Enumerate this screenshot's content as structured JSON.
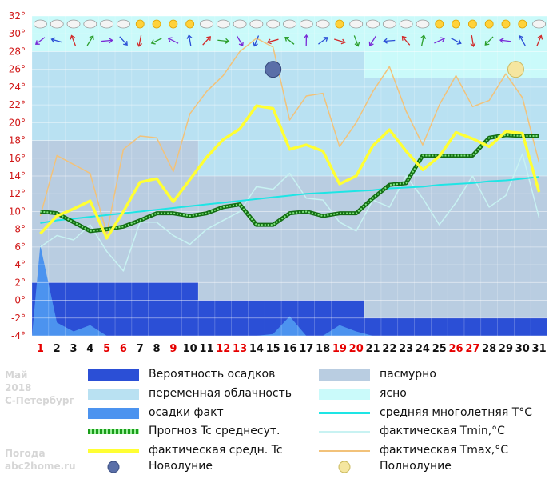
{
  "chart_data": {
    "type": "line",
    "ylim": [
      -4,
      32
    ],
    "yticks": [
      -4,
      -2,
      0,
      2,
      4,
      6,
      8,
      10,
      12,
      14,
      16,
      18,
      20,
      22,
      24,
      26,
      28,
      30,
      32
    ],
    "ytick_labels": [
      "-4°",
      "-2°",
      "0°",
      "2°",
      "4°",
      "6°",
      "8°",
      "10°",
      "12°",
      "14°",
      "16°",
      "18°",
      "20°",
      "22°",
      "24°",
      "26°",
      "28°",
      "30°",
      "32°"
    ],
    "x": [
      1,
      2,
      3,
      4,
      5,
      6,
      7,
      8,
      9,
      10,
      11,
      12,
      13,
      14,
      15,
      16,
      17,
      18,
      19,
      20,
      21,
      22,
      23,
      24,
      25,
      26,
      27,
      28,
      29,
      30,
      31
    ],
    "x_labels": [
      "1",
      "2",
      "3",
      "4",
      "5",
      "6",
      "7",
      "8",
      "9",
      "10",
      "11",
      "12",
      "13",
      "14",
      "15",
      "16",
      "17",
      "18",
      "19",
      "20",
      "21",
      "22",
      "23",
      "24",
      "25",
      "26",
      "27",
      "28",
      "29",
      "30",
      "31"
    ],
    "red_days": [
      1,
      5,
      6,
      9,
      12,
      13,
      19,
      20,
      26,
      27
    ],
    "red_color": "#e60000",
    "series": [
      {
        "name": "фактическая Tmax,°C",
        "color": "#f2c27a",
        "values": [
          9.5,
          16.3,
          15.3,
          14.3,
          7.5,
          17.0,
          18.5,
          18.3,
          14.5,
          21.0,
          23.5,
          25.3,
          28.0,
          29.5,
          28.5,
          20.3,
          23.0,
          23.3,
          17.3,
          20.0,
          23.5,
          26.3,
          21.3,
          17.5,
          22.0,
          25.3,
          21.8,
          22.5,
          25.5,
          22.8,
          15.5
        ]
      },
      {
        "name": "фактическая Tmin,°C",
        "color": "#c8f2f2",
        "values": [
          6.0,
          7.3,
          6.8,
          8.5,
          5.5,
          3.3,
          8.8,
          8.8,
          7.3,
          6.3,
          8.0,
          9.0,
          10.0,
          12.8,
          12.5,
          14.3,
          11.5,
          11.3,
          8.8,
          7.8,
          11.3,
          10.5,
          14.0,
          11.5,
          8.5,
          11.0,
          14.0,
          10.5,
          11.8,
          16.5,
          9.3
        ]
      },
      {
        "name": "средняя многолетняя T°C",
        "color": "#1ee5e5",
        "values": [
          8.7,
          9.0,
          9.2,
          9.4,
          9.6,
          9.8,
          10.0,
          10.2,
          10.4,
          10.6,
          10.8,
          11.0,
          11.2,
          11.4,
          11.6,
          11.8,
          12.0,
          12.1,
          12.2,
          12.3,
          12.4,
          12.6,
          12.7,
          12.8,
          13.0,
          13.1,
          13.2,
          13.4,
          13.5,
          13.7,
          13.9
        ]
      },
      {
        "name": "Прогноз Tc среднесут.",
        "color": "#1a9e1a",
        "values": [
          10.0,
          9.8,
          8.8,
          7.8,
          8.0,
          8.3,
          9.0,
          9.8,
          9.8,
          9.5,
          9.8,
          10.5,
          10.8,
          8.5,
          8.5,
          9.8,
          10.0,
          9.5,
          9.8,
          9.8,
          11.5,
          13.0,
          13.2,
          16.3,
          16.3,
          16.3,
          16.3,
          18.3,
          18.6,
          18.5,
          18.5
        ]
      },
      {
        "name": "фактическая средн. Tc",
        "color": "#ffff33",
        "values": [
          7.5,
          9.5,
          10.3,
          11.2,
          7.0,
          10.0,
          13.3,
          13.7,
          11.1,
          13.6,
          16.1,
          18.1,
          19.3,
          21.9,
          21.6,
          17.0,
          17.5,
          16.8,
          13.1,
          14.0,
          17.4,
          19.2,
          16.8,
          14.7,
          16.2,
          18.9,
          18.2,
          17.3,
          19.0,
          18.8,
          12.2
        ]
      }
    ],
    "precip_fact_values": [
      6.2,
      -2.5,
      -3.5,
      -2.8,
      -4.0,
      -4.0,
      -4.0,
      -4.0,
      -4.0,
      -4.0,
      -4.0,
      -4.0,
      -4.0,
      -4.0,
      -3.8,
      -1.8,
      -4.0,
      -4.0,
      -2.8,
      -3.5,
      -4.0,
      -4.0,
      -4.0,
      -4.0,
      -4.0,
      -4.0,
      -4.0,
      -4.0,
      -4.0,
      -4.0,
      -4.0
    ],
    "cloud_bands": [
      {
        "start_day": 1,
        "end_day": 10,
        "cloud_from": 18,
        "cloud_to": 28,
        "prob_top": 2
      },
      {
        "start_day": 11,
        "end_day": 20,
        "cloud_from": 14,
        "cloud_to": 28,
        "prob_top": 0
      },
      {
        "start_day": 21,
        "end_day": 31,
        "cloud_from": 14,
        "cloud_to": 25,
        "prob_top": -2
      }
    ],
    "new_moon": {
      "day": 15,
      "value": 26
    },
    "full_moon": {
      "day": 29.6,
      "value": 26
    },
    "colors": {
      "overcast": "#b9cde1",
      "partly_cloudy": "#b9e1f2",
      "clear": "#cafafa",
      "precip_prob": "#2b4fd6",
      "precip_fact": "#4c93ef",
      "grid": "#ffffff",
      "ytick": "#d11919"
    }
  },
  "sidebar": {
    "month": "Май",
    "year": "2018",
    "city": "С-Петербург",
    "site_line1": "Погода",
    "site_line2": "abc2home.ru"
  },
  "legend": {
    "precip_prob": "Вероятность осадков",
    "partly_cloudy": "переменная облачность",
    "precip_fact": "осадки факт",
    "forecast_avg": "Прогноз Tc среднесут.",
    "fact_avg": "фактическая средн. Tc",
    "new_moon": "Новолуние",
    "overcast": "пасмурно",
    "clear": "ясно",
    "avg_long": "средняя многолетняя T°C",
    "tmin": "фактическая Tmin,°C",
    "tmax": "фактическая Tmax,°C",
    "full_moon": "Полнолуние"
  }
}
